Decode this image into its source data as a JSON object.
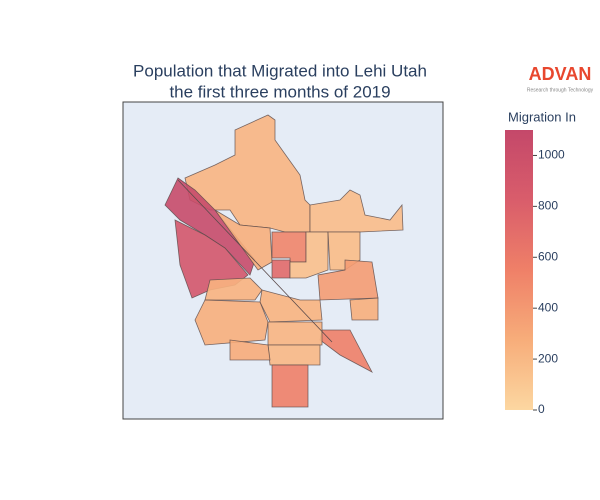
{
  "chart_data": {
    "type": "choropleth",
    "title": [
      "Population that Migrated into Lehi Utah",
      "the first three months of 2019"
    ],
    "logo": {
      "text": "ADVAN",
      "tagline": "Research through Technology"
    },
    "values": [
      220,
      170,
      1060,
      900,
      260,
      520,
      720,
      150,
      180,
      380,
      240,
      230,
      260,
      560,
      260,
      220,
      200,
      560,
      280
    ],
    "colorbar": {
      "title": "Migration In",
      "range": [
        0,
        1100
      ],
      "ticks": [
        0,
        200,
        400,
        600,
        800,
        1000
      ],
      "colorscale": [
        "#fcd7a1",
        "#f7ad7a",
        "#ef8068",
        "#d95d6b",
        "#c4486a"
      ]
    }
  }
}
